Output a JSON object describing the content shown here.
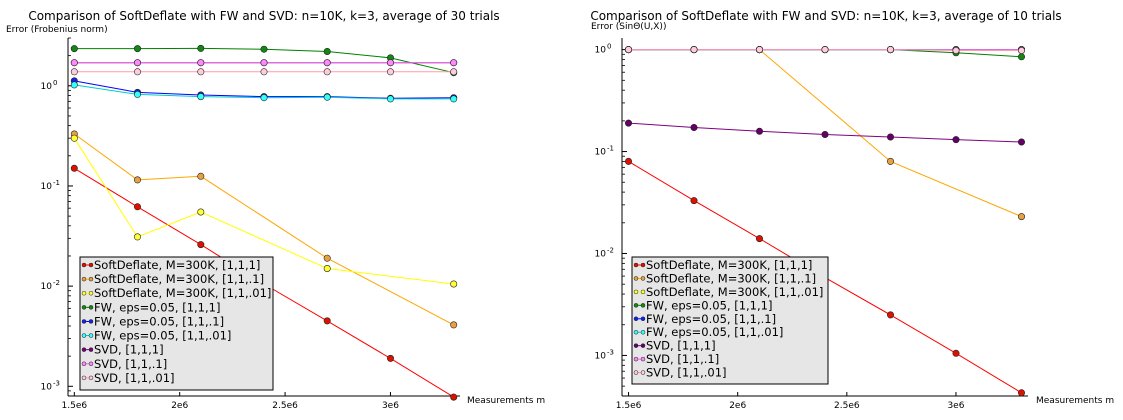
{
  "chart_data": [
    {
      "type": "line",
      "title": "Comparison of SoftDeflate with FW and SVD: n=10K, k=3, average of 30 trials",
      "ylabel": "Error (Frobenius norm)",
      "xlabel": "Measurements m",
      "yscale": "log",
      "ylim": [
        0.0008,
        3.0
      ],
      "xlim": [
        1470000.0,
        3330000.0
      ],
      "x_ticks": [
        1500000.0,
        2000000.0,
        2500000.0,
        3000000.0
      ],
      "x_tick_labels": [
        "1.5e6",
        "2e6",
        "2.5e6",
        "3e6"
      ],
      "y_ticks": [
        0.001,
        0.01,
        0.1,
        1
      ],
      "y_tick_labels": [
        "10",
        "10",
        "10",
        "10"
      ],
      "y_tick_exps": [
        "-3",
        "-2",
        "-1",
        "0"
      ],
      "legend_placement": "lower-left",
      "grid": false,
      "x": [
        1500000,
        1800000,
        2100000,
        2400000,
        2700000,
        3000000,
        3300000
      ],
      "series": [
        {
          "name": "SoftDeflate, M=300K, [1,1,1]",
          "color": "#ff0000",
          "fill": "#dd1100",
          "values": [
            0.15,
            0.062,
            0.026,
            0.0105,
            0.0045,
            0.0019,
            0.00078
          ]
        },
        {
          "name": "SoftDeflate, M=300K, [1,1,.1]",
          "color": "#ffa500",
          "fill": "#e8a040",
          "values": [
            0.33,
            0.115,
            0.125,
            null,
            0.019,
            null,
            0.0041
          ]
        },
        {
          "name": "SoftDeflate, M=300K, [1,1,.01]",
          "color": "#ffff00",
          "fill": "#ffff33",
          "values": [
            0.3,
            0.031,
            0.055,
            null,
            0.015,
            null,
            0.0105
          ]
        },
        {
          "name": "FW, eps=0.05, [1,1,1]",
          "color": "#008000",
          "fill": "#118811",
          "values": [
            2.35,
            2.35,
            2.36,
            2.32,
            2.2,
            1.9,
            1.35
          ]
        },
        {
          "name": "FW, eps=0.05, [1,1,.1]",
          "color": "#0000ff",
          "fill": "#1122ee",
          "values": [
            1.12,
            0.86,
            0.81,
            0.78,
            0.78,
            0.75,
            0.76
          ]
        },
        {
          "name": "FW, eps=0.05, [1,1,.01]",
          "color": "#00cccc",
          "fill": "#33ffff",
          "values": [
            1.02,
            0.82,
            0.78,
            0.76,
            0.77,
            0.74,
            0.74
          ]
        },
        {
          "name": "SVD, [1,1,1]",
          "color": "#800080",
          "fill": "#770077",
          "values": [
            1.7,
            1.7,
            1.7,
            1.7,
            1.7,
            1.7,
            1.7
          ]
        },
        {
          "name": "SVD, [1,1,.1]",
          "color": "#ee66ee",
          "fill": "#ff88ff",
          "values": [
            1.7,
            1.7,
            1.7,
            1.7,
            1.7,
            1.7,
            1.7
          ]
        },
        {
          "name": "SVD, [1,1,.01]",
          "color": "#ff99aa",
          "fill": "#ffccdd",
          "values": [
            1.38,
            1.38,
            1.38,
            1.38,
            1.38,
            1.38,
            1.38
          ]
        }
      ]
    },
    {
      "type": "line",
      "title": "Comparison of SoftDeflate with FW and SVD: n=10K, k=3, average of 10 trials",
      "ylabel": "Error (SinΘ(U,X))",
      "xlabel": "Measurements m",
      "yscale": "log",
      "ylim": [
        0.0004,
        1.3
      ],
      "xlim": [
        1470000.0,
        3330000.0
      ],
      "x_ticks": [
        1500000.0,
        2000000.0,
        2500000.0,
        3000000.0
      ],
      "x_tick_labels": [
        "1.5e6",
        "2e6",
        "2.5e6",
        "3e6"
      ],
      "y_ticks": [
        0.001,
        0.01,
        0.1,
        1
      ],
      "y_tick_labels": [
        "10",
        "10",
        "10",
        "10"
      ],
      "y_tick_exps": [
        "-3",
        "-2",
        "-1",
        "0"
      ],
      "legend_placement": "lower-left",
      "grid": false,
      "x": [
        1500000,
        1800000,
        2100000,
        2400000,
        2700000,
        3000000,
        3300000
      ],
      "series": [
        {
          "name": "SoftDeflate, M=300K, [1,1,1]",
          "color": "#ff0000",
          "fill": "#dd1100",
          "values": [
            0.08,
            0.033,
            0.014,
            0.0058,
            0.0025,
            0.00105,
            0.00043
          ]
        },
        {
          "name": "SoftDeflate, M=300K, [1,1,.1]",
          "color": "#ffa500",
          "fill": "#e8a040",
          "values": [
            1.0,
            1.0,
            1.0,
            null,
            0.08,
            null,
            0.023
          ]
        },
        {
          "name": "SoftDeflate, M=300K, [1,1,.01]",
          "color": "#ffff00",
          "fill": "#ffff33",
          "values": [
            1.0,
            1.0,
            1.0,
            1.0,
            1.0,
            1.0,
            1.0
          ]
        },
        {
          "name": "FW, eps=0.05, [1,1,1]",
          "color": "#008000",
          "fill": "#118811",
          "values": [
            1.0,
            1.0,
            1.0,
            1.0,
            1.0,
            0.93,
            0.85
          ]
        },
        {
          "name": "FW, eps=0.05, [1,1,.1]",
          "color": "#0000ff",
          "fill": "#1122ee",
          "values": [
            1.0,
            1.0,
            1.0,
            1.0,
            1.0,
            1.0,
            1.0
          ]
        },
        {
          "name": "FW, eps=0.05, [1,1,.01]",
          "color": "#00cccc",
          "fill": "#33ffff",
          "values": [
            1.0,
            1.0,
            1.0,
            1.0,
            1.0,
            1.0,
            1.0
          ]
        },
        {
          "name": "SVD, [1,1,1]",
          "color": "#800080",
          "fill": "#660066",
          "values": [
            0.19,
            0.172,
            0.158,
            0.147,
            0.139,
            0.131,
            0.124
          ]
        },
        {
          "name": "SVD, [1,1,.1]",
          "color": "#ee66ee",
          "fill": "#ff88ff",
          "values": [
            1.0,
            1.0,
            1.0,
            1.0,
            1.0,
            1.0,
            1.0
          ]
        },
        {
          "name": "SVD, [1,1,.01]",
          "color": "#ff99aa",
          "fill": "#ffccdd",
          "values": [
            1.0,
            1.0,
            1.0,
            1.0,
            1.0,
            0.98,
            0.98
          ]
        }
      ]
    }
  ]
}
